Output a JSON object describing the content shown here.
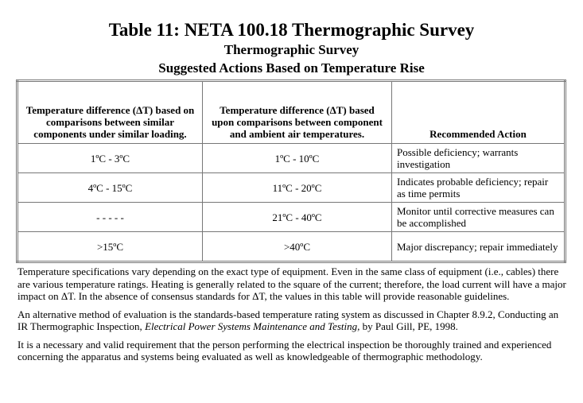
{
  "header": {
    "title": "Table 11: NETA 100.18 Thermographic Survey",
    "subtitles": [
      "Thermographic Survey",
      "Suggested Actions Based on Temperature Rise"
    ]
  },
  "table": {
    "columns": [
      "Temperature difference (ΔT) based on comparisons between similar components under similar loading.",
      "Temperature difference (ΔT) based upon comparisons between component and ambient air temperatures.",
      "Recommended Action"
    ],
    "rows": [
      [
        "1ºC - 3ºC",
        "1ºC - 10ºC",
        "Possible deficiency; warrants investigation"
      ],
      [
        "4ºC - 15ºC",
        "11ºC - 20ºC",
        "Indicates probable deficiency; repair as time permits"
      ],
      [
        "- - - - -",
        "21ºC - 40ºC",
        "Monitor until corrective measures can be accomplished"
      ],
      [
        ">15ºC",
        ">40ºC",
        "Major discrepancy; repair immediately"
      ]
    ]
  },
  "notes": [
    [
      "Temperature specifications vary depending on the exact type of equipment. Even in the same class of equipment (i.e., cables) there are various temperature ratings. Heating is generally related to the square of the current; therefore, the load current will have a major impact on ΔT. In the absence of consensus standards for ΔT, the values in this table will provide reasonable guidelines."
    ],
    [
      "An alternative method of evaluation is the standards-based temperature rating system as discussed in Chapter 8.9.2, Conducting an IR Thermographic Inspection, ",
      "Electrical Power Systems Maintenance and Testing",
      ", by Paul Gill, PE, 1998."
    ],
    [
      "It is a necessary and valid requirement that the person performing the electrical inspection be thoroughly trained and experienced concerning the apparatus and systems being evaluated as well as knowledgeable of thermographic methodology."
    ]
  ]
}
